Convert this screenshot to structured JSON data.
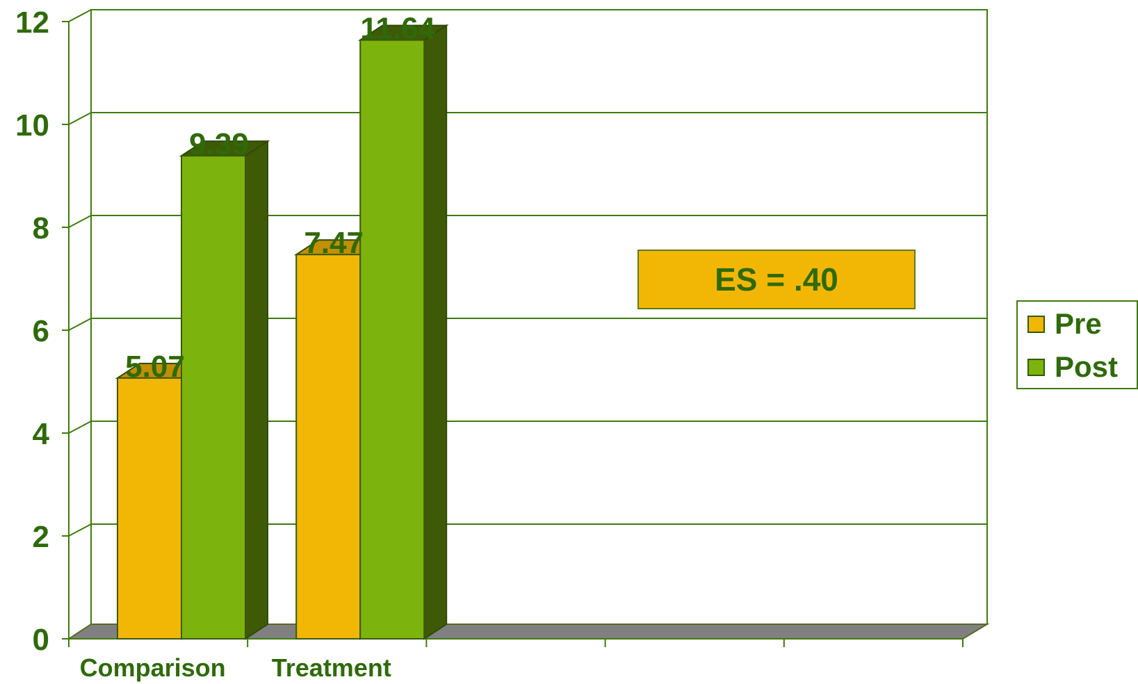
{
  "chart_data": {
    "type": "bar",
    "categories": [
      "Comparison",
      "Treatment",
      "",
      "",
      ""
    ],
    "series": [
      {
        "name": "Pre",
        "values": [
          5.07,
          7.47,
          null,
          null,
          null
        ],
        "color": "#f2b705",
        "side_color": "#c08f02"
      },
      {
        "name": "Post",
        "values": [
          9.39,
          11.64,
          null,
          null,
          null
        ],
        "color": "#7cb30d",
        "side_color": "#3e5a07"
      }
    ],
    "ylim": [
      0,
      12
    ],
    "yticks": [
      "0",
      "2",
      "4",
      "6",
      "8",
      "10",
      "12"
    ],
    "grid": true,
    "legend_position": "right",
    "annotation": "ES = .40",
    "title": "",
    "xlabel": "",
    "ylabel": "",
    "text_color": "#2f6a0a",
    "axis_color": "#3f7a0b",
    "floor_color": "#808080"
  }
}
